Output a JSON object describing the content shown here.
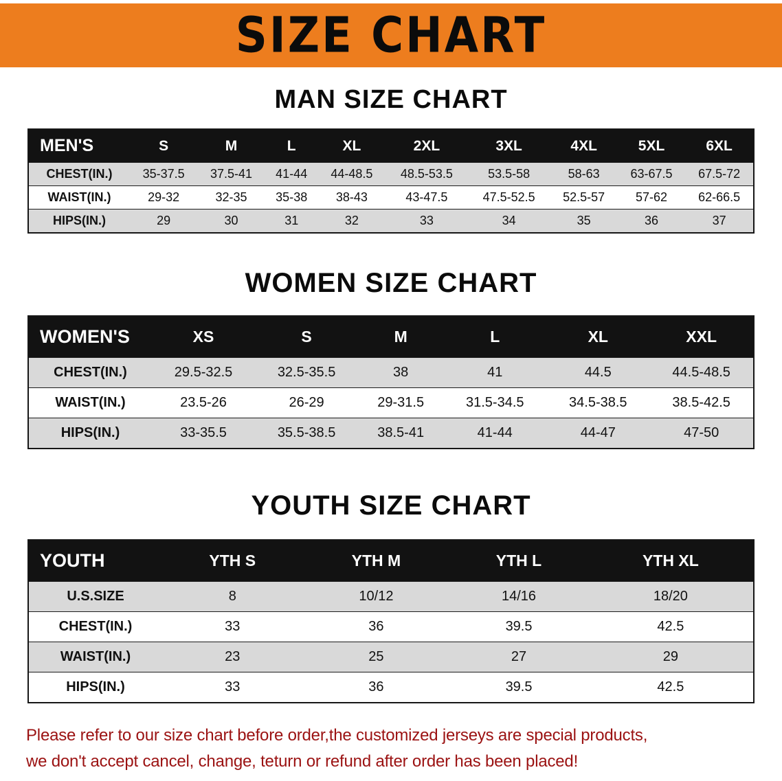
{
  "banner": {
    "title": "SIZE CHART"
  },
  "colors": {
    "banner_bg": "#ED7D1E",
    "header_bg": "#121212",
    "row_alt": "#D9D9D9",
    "disclaimer_color": "#9B1212"
  },
  "sections": {
    "men": {
      "heading": "MAN SIZE CHART",
      "table": {
        "header": [
          "MEN'S",
          "S",
          "M",
          "L",
          "XL",
          "2XL",
          "3XL",
          "4XL",
          "5XL",
          "6XL"
        ],
        "rows": [
          [
            "CHEST(IN.)",
            "35-37.5",
            "37.5-41",
            "41-44",
            "44-48.5",
            "48.5-53.5",
            "53.5-58",
            "58-63",
            "63-67.5",
            "67.5-72"
          ],
          [
            "WAIST(IN.)",
            "29-32",
            "32-35",
            "35-38",
            "38-43",
            "43-47.5",
            "47.5-52.5",
            "52.5-57",
            "57-62",
            "62-66.5"
          ],
          [
            "HIPS(IN.)",
            "29",
            "30",
            "31",
            "32",
            "33",
            "34",
            "35",
            "36",
            "37"
          ]
        ]
      }
    },
    "women": {
      "heading": "WOMEN SIZE CHART",
      "table": {
        "header": [
          "WOMEN'S",
          "XS",
          "S",
          "M",
          "L",
          "XL",
          "XXL"
        ],
        "rows": [
          [
            "CHEST(IN.)",
            "29.5-32.5",
            "32.5-35.5",
            "38",
            "41",
            "44.5",
            "44.5-48.5"
          ],
          [
            "WAIST(IN.)",
            "23.5-26",
            "26-29",
            "29-31.5",
            "31.5-34.5",
            "34.5-38.5",
            "38.5-42.5"
          ],
          [
            "HIPS(IN.)",
            "33-35.5",
            "35.5-38.5",
            "38.5-41",
            "41-44",
            "44-47",
            "47-50"
          ]
        ]
      }
    },
    "youth": {
      "heading": "YOUTH SIZE CHART",
      "table": {
        "header": [
          "YOUTH",
          "YTH S",
          "YTH M",
          "YTH L",
          "YTH XL"
        ],
        "rows": [
          [
            "U.S.SIZE",
            "8",
            "10/12",
            "14/16",
            "18/20"
          ],
          [
            "CHEST(IN.)",
            "33",
            "36",
            "39.5",
            "42.5"
          ],
          [
            "WAIST(IN.)",
            "23",
            "25",
            "27",
            "29"
          ],
          [
            "HIPS(IN.)",
            "33",
            "36",
            "39.5",
            "42.5"
          ]
        ]
      }
    }
  },
  "disclaimer": {
    "line1": "Please refer to our size chart before order,the customized jerseys are special products,",
    "line2": "we don't accept cancel, change, teturn or refund after order has been placed!"
  }
}
